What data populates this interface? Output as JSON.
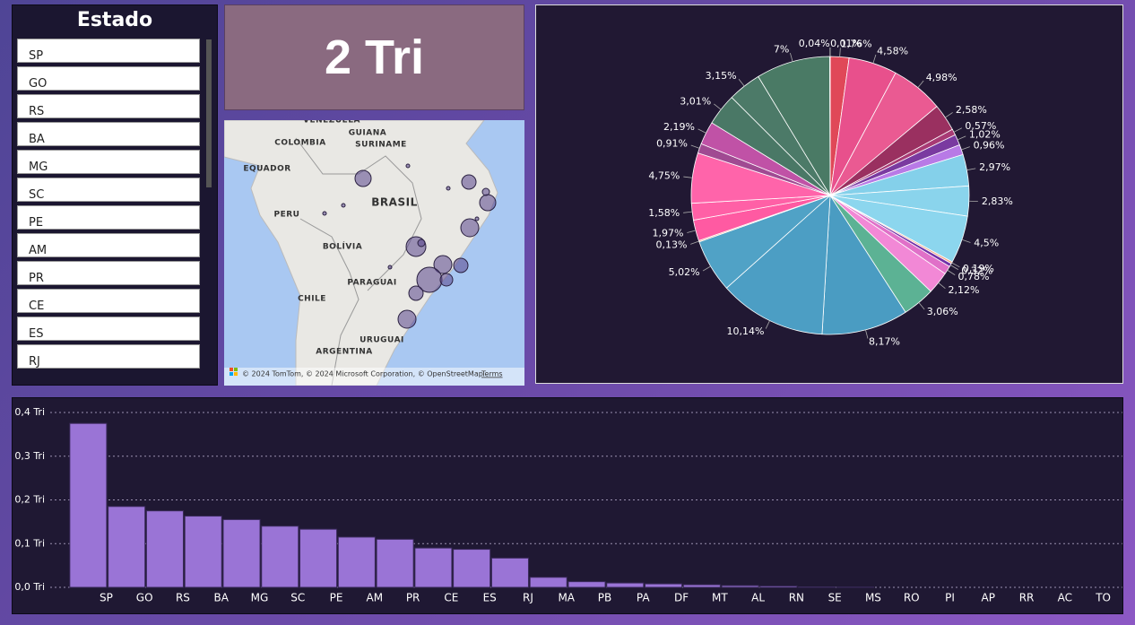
{
  "slicer": {
    "title": "Estado",
    "items": [
      "SP",
      "GO",
      "RS",
      "BA",
      "MG",
      "SC",
      "PE",
      "AM",
      "PR",
      "CE",
      "ES",
      "RJ"
    ]
  },
  "card": {
    "text": "2 Tri"
  },
  "map": {
    "labels": [
      "VENEZUELA",
      "GUIANA",
      "SURINAME",
      "COLOMBIA",
      "EQUADOR",
      "BRASIL",
      "PERU",
      "BOLÍVIA",
      "PARAGUAI",
      "CHILE",
      "URUGUAI",
      "ARGENTINA"
    ],
    "attribution": "© 2024 TomTom, © 2024 Microsoft Corporation, © OpenStreetMap",
    "terms": "Terms"
  },
  "chart_data": [
    {
      "type": "pie",
      "values": [
        0.01,
        1.76,
        4.58,
        4.98,
        2.58,
        0.57,
        1.02,
        0.96,
        2.97,
        2.83,
        4.5,
        0.19,
        0.32,
        0.78,
        2.12,
        3.06,
        8.17,
        10.14,
        5.02,
        0.13,
        1.97,
        1.58,
        4.75,
        0.91,
        2.19,
        3.01,
        3.15,
        7,
        0.04
      ],
      "value_labels": [
        "0,01%",
        "1,76%",
        "4,58%",
        "4,98%",
        "2,58%",
        "0,57%",
        "1,02%",
        "0,96%",
        "2,97%",
        "2,83%",
        "4,5%",
        "0,19%",
        "0,32%",
        "0,78%",
        "2,12%",
        "3,06%",
        "8,17%",
        "10,14%",
        "5,02%",
        "0,13%",
        "1,97%",
        "1,58%",
        "4,75%",
        "0,91%",
        "2,19%",
        "3,01%",
        "3,15%",
        "7%",
        "0,04%"
      ],
      "colors": [
        "#3a82e0",
        "#e04858",
        "#e8508c",
        "#ea5a92",
        "#9a3060",
        "#a83a74",
        "#7a3aa0",
        "#b87ae6",
        "#84d0ea",
        "#8ad4ec",
        "#8cd6ee",
        "#f4a888",
        "#7230a8",
        "#e070c8",
        "#f288d6",
        "#5cb294",
        "#4a9cc2",
        "#4c9ec4",
        "#50a2c6",
        "#f4a888",
        "#ff5aa2",
        "#ff60a6",
        "#ff64aa",
        "#a04a92",
        "#c052a6",
        "#4a7866",
        "#4c7a68",
        "#4a7a65",
        "#f2f2f2"
      ]
    },
    {
      "type": "bar",
      "categories": [
        "SP",
        "GO",
        "RS",
        "BA",
        "MG",
        "SC",
        "PE",
        "AM",
        "PR",
        "CE",
        "ES",
        "RJ",
        "MA",
        "PB",
        "PA",
        "DF",
        "MT",
        "AL",
        "RN",
        "SE",
        "MS",
        "RO",
        "PI",
        "AP",
        "RR",
        "AC",
        "TO"
      ],
      "values": [
        0.375,
        0.185,
        0.175,
        0.163,
        0.155,
        0.14,
        0.133,
        0.115,
        0.11,
        0.09,
        0.087,
        0.067,
        0.023,
        0.013,
        0.01,
        0.008,
        0.006,
        0.004,
        0.003,
        0.001,
        0.0005,
        0,
        0,
        0,
        0,
        0,
        0
      ],
      "color": "#9a74d6",
      "ylim": [
        0,
        0.4
      ],
      "yticks": [
        {
          "value": 0,
          "label": "0,0 Tri"
        },
        {
          "value": 0.1,
          "label": "0,1 Tri"
        },
        {
          "value": 0.2,
          "label": "0,2 Tri"
        },
        {
          "value": 0.3,
          "label": "0,3 Tri"
        },
        {
          "value": 0.4,
          "label": "0,4 Tri"
        }
      ],
      "grid": true
    }
  ]
}
